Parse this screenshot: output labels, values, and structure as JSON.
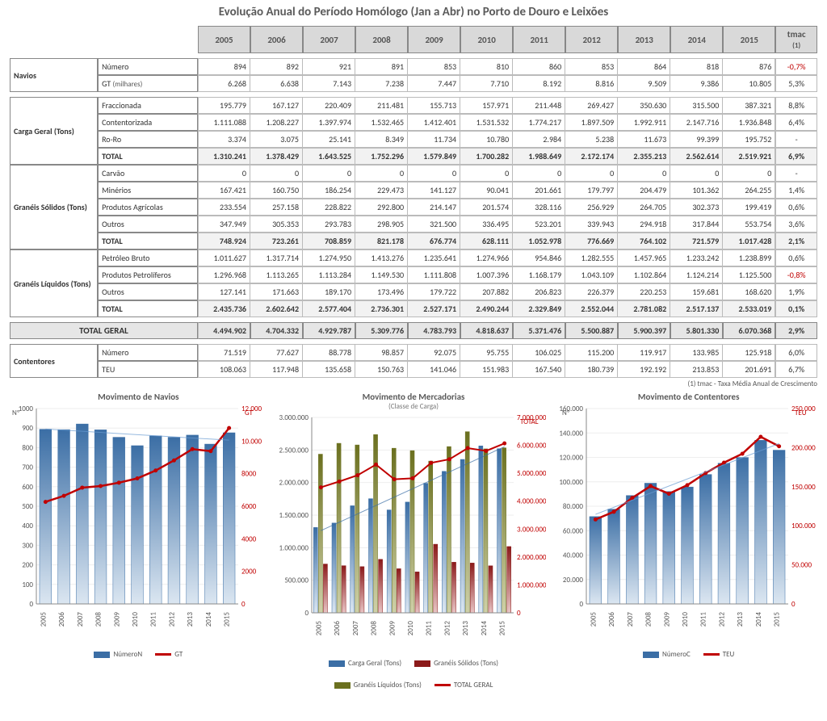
{
  "title": "Evolução Anual do Período Homólogo (Jan a Abr) no Porto de Douro e Leixões",
  "years": [
    "2005",
    "2006",
    "2007",
    "2008",
    "2009",
    "2010",
    "2011",
    "2012",
    "2013",
    "2014",
    "2015"
  ],
  "tmac_label": "tmac",
  "tmac_note_num": "(1)",
  "footnote": "(1) tmac - Taxa Média Anual de Crescimento",
  "colors": {
    "header_bg": "#d9d9d9",
    "total_bg": "#f2f2f2",
    "grand_bg": "#e6e6e6",
    "bar_top": "#3b6ea5",
    "bar_bot": "#dbe6f1",
    "bar_olive": "#6b701f",
    "bar_dkred": "#8b1a1a",
    "line_red": "#c00000",
    "axis_text": "#555555"
  },
  "groups": [
    {
      "label": "Navios",
      "rows": [
        {
          "label": "Número",
          "vals": [
            "894",
            "892",
            "921",
            "891",
            "853",
            "810",
            "860",
            "853",
            "864",
            "818",
            "876"
          ],
          "tmac": "-0,7%",
          "neg": true
        },
        {
          "label": "GT",
          "label_extra": "(milhares)",
          "vals": [
            "6.268",
            "6.638",
            "7.143",
            "7.238",
            "7.447",
            "7.710",
            "8.192",
            "8.816",
            "9.509",
            "9.386",
            "10.805"
          ],
          "tmac": "5,3%"
        }
      ]
    },
    {
      "label": "Carga Geral (Tons)",
      "rows": [
        {
          "label": "Fraccionada",
          "vals": [
            "195.779",
            "167.127",
            "220.409",
            "211.481",
            "155.713",
            "157.971",
            "211.448",
            "269.427",
            "350.630",
            "315.500",
            "387.321"
          ],
          "tmac": "8,8%"
        },
        {
          "label": "Contentorizada",
          "vals": [
            "1.111.088",
            "1.208.227",
            "1.397.974",
            "1.532.465",
            "1.412.401",
            "1.531.532",
            "1.774.217",
            "1.897.509",
            "1.992.911",
            "2.147.716",
            "1.936.848"
          ],
          "tmac": "6,4%"
        },
        {
          "label": "Ro-Ro",
          "vals": [
            "3.374",
            "3.075",
            "25.141",
            "8.349",
            "11.734",
            "10.780",
            "2.984",
            "5.238",
            "11.673",
            "99.399",
            "195.752"
          ],
          "tmac": "-"
        },
        {
          "label": "TOTAL",
          "total": true,
          "vals": [
            "1.310.241",
            "1.378.429",
            "1.643.525",
            "1.752.296",
            "1.579.849",
            "1.700.282",
            "1.988.649",
            "2.172.174",
            "2.355.213",
            "2.562.614",
            "2.519.921"
          ],
          "tmac": "6,9%"
        }
      ]
    },
    {
      "label": "Granéis Sólidos (Tons)",
      "rows": [
        {
          "label": "Carvão",
          "vals": [
            "0",
            "0",
            "0",
            "0",
            "0",
            "0",
            "0",
            "0",
            "0",
            "0",
            "0"
          ],
          "tmac": "-"
        },
        {
          "label": "Minérios",
          "vals": [
            "167.421",
            "160.750",
            "186.254",
            "229.473",
            "141.127",
            "90.041",
            "201.661",
            "179.797",
            "204.479",
            "101.362",
            "264.255"
          ],
          "tmac": "1,4%"
        },
        {
          "label": "Produtos Agrícolas",
          "vals": [
            "233.554",
            "257.158",
            "228.822",
            "292.800",
            "214.147",
            "201.574",
            "328.116",
            "256.929",
            "264.705",
            "302.373",
            "199.419"
          ],
          "tmac": "0,6%"
        },
        {
          "label": "Outros",
          "vals": [
            "347.949",
            "305.353",
            "293.783",
            "298.905",
            "321.500",
            "336.495",
            "523.201",
            "339.943",
            "294.918",
            "317.844",
            "553.754"
          ],
          "tmac": "3,6%"
        },
        {
          "label": "TOTAL",
          "total": true,
          "vals": [
            "748.924",
            "723.261",
            "708.859",
            "821.178",
            "676.774",
            "628.111",
            "1.052.978",
            "776.669",
            "764.102",
            "721.579",
            "1.017.428"
          ],
          "tmac": "2,1%"
        }
      ]
    },
    {
      "label": "Granéis Líquidos (Tons)",
      "rows": [
        {
          "label": "Petróleo Bruto",
          "vals": [
            "1.011.627",
            "1.317.714",
            "1.274.950",
            "1.413.276",
            "1.235.641",
            "1.274.966",
            "954.846",
            "1.282.555",
            "1.457.965",
            "1.233.242",
            "1.238.899"
          ],
          "tmac": "0,6%"
        },
        {
          "label": "Produtos Petrolíferos",
          "vals": [
            "1.296.968",
            "1.113.265",
            "1.113.284",
            "1.149.530",
            "1.111.808",
            "1.007.396",
            "1.168.179",
            "1.043.109",
            "1.102.864",
            "1.124.214",
            "1.125.500"
          ],
          "tmac": "-0,8%",
          "neg": true
        },
        {
          "label": "Outros",
          "vals": [
            "127.141",
            "171.663",
            "189.170",
            "173.496",
            "179.722",
            "207.882",
            "206.823",
            "226.379",
            "220.253",
            "159.681",
            "168.620"
          ],
          "tmac": "1,9%"
        },
        {
          "label": "TOTAL",
          "total": true,
          "vals": [
            "2.435.736",
            "2.602.642",
            "2.577.404",
            "2.736.301",
            "2.527.171",
            "2.490.244",
            "2.329.849",
            "2.552.044",
            "2.781.082",
            "2.517.137",
            "2.533.019"
          ],
          "tmac": "0,1%"
        }
      ]
    }
  ],
  "grand": {
    "label": "TOTAL GERAL",
    "vals": [
      "4.494.902",
      "4.704.332",
      "4.929.787",
      "5.309.776",
      "4.783.793",
      "4.818.637",
      "5.371.476",
      "5.500.887",
      "5.900.397",
      "5.801.330",
      "6.070.368"
    ],
    "tmac": "2,9%"
  },
  "containers": {
    "label": "Contentores",
    "rows": [
      {
        "label": "Número",
        "vals": [
          "71.519",
          "77.627",
          "88.778",
          "98.857",
          "92.075",
          "95.755",
          "106.025",
          "115.200",
          "119.917",
          "133.985",
          "125.918"
        ],
        "tmac": "6,0%"
      },
      {
        "label": "TEU",
        "vals": [
          "108.063",
          "117.948",
          "135.658",
          "150.763",
          "141.046",
          "151.983",
          "167.540",
          "180.739",
          "192.192",
          "213.853",
          "201.691"
        ],
        "tmac": "6,7%"
      }
    ]
  },
  "chart1": {
    "title": "Movimento de Navios",
    "ylabel_l": "Nº",
    "ylabel_r": "GT",
    "ylim_l": [
      0,
      1000
    ],
    "ystep_l": 100,
    "ylim_r": [
      0,
      12000
    ],
    "ystep_r": 2000,
    "bars": [
      894,
      892,
      921,
      891,
      853,
      810,
      860,
      853,
      864,
      818,
      876
    ],
    "line": [
      6268,
      6638,
      7143,
      7238,
      7447,
      7710,
      8192,
      8816,
      9509,
      9386,
      10805
    ],
    "bar_color_top": "#3b6ea5",
    "bar_color_bot": "#dbe6f1",
    "line_color": "#c00000",
    "legend": [
      {
        "label": "NúmeroN",
        "type": "bar",
        "color": "#3b6ea5"
      },
      {
        "label": "GT",
        "type": "line",
        "color": "#c00000"
      }
    ]
  },
  "chart2": {
    "title": "Movimento  de Mercadorias",
    "subtitle": "(Classe de Carga)",
    "ylabel_r": "TOTAL",
    "ylim_l": [
      0,
      3000000
    ],
    "ystep_l": 500000,
    "ylim_r": [
      0,
      7000000
    ],
    "ystep_r": 1000000,
    "series": [
      {
        "name": "Carga Geral (Tons)",
        "type": "bar",
        "color_top": "#3b6ea5",
        "color_bot": "#dbe6f1",
        "vals": [
          1310241,
          1378429,
          1643525,
          1752296,
          1579849,
          1700282,
          1988649,
          2172174,
          2355213,
          2562614,
          2519921
        ]
      },
      {
        "name": "Granéis Líquidos (Tons)",
        "type": "bar",
        "color_top": "#6b701f",
        "color_bot": "#cfd1a9",
        "vals": [
          2435736,
          2602642,
          2577404,
          2736301,
          2527171,
          2490244,
          2329849,
          2552044,
          2781082,
          2517137,
          2533019
        ]
      },
      {
        "name": "Granéis Sólidos (Tons)",
        "type": "bar",
        "color_top": "#8b1a1a",
        "color_bot": "#e8c5c5",
        "vals": [
          748924,
          723261,
          708859,
          821178,
          676774,
          628111,
          1052978,
          776669,
          764102,
          721579,
          1017428
        ]
      }
    ],
    "line_total": {
      "name": "TOTAL GERAL",
      "color": "#c00000",
      "vals": [
        4494902,
        4704332,
        4929787,
        5309776,
        4783793,
        4818637,
        5371476,
        5500887,
        5900397,
        5801330,
        6070368
      ]
    },
    "legend": [
      {
        "label": "Carga Geral (Tons)",
        "type": "bar",
        "color": "#3b6ea5"
      },
      {
        "label": "Granéis Sólidos (Tons)",
        "type": "bar",
        "color": "#8b1a1a"
      },
      {
        "label": "Granéis Líquidos (Tons)",
        "type": "bar",
        "color": "#6b701f"
      },
      {
        "label": "TOTAL GERAL",
        "type": "line",
        "color": "#c00000"
      }
    ]
  },
  "chart3": {
    "title": "Movimento de Contentores",
    "ylabel_l": "Nº",
    "ylabel_r": "TEU",
    "ylim_l": [
      0,
      160000
    ],
    "ystep_l": 20000,
    "ylim_r": [
      0,
      250000
    ],
    "ystep_r": 50000,
    "bars": [
      71519,
      77627,
      88778,
      98857,
      92075,
      95755,
      106025,
      115200,
      119917,
      133985,
      125918
    ],
    "line": [
      108063,
      117948,
      135658,
      150763,
      141046,
      151983,
      167540,
      180739,
      192192,
      213853,
      201691
    ],
    "bar_color_top": "#3b6ea5",
    "bar_color_bot": "#dbe6f1",
    "line_color": "#c00000",
    "legend": [
      {
        "label": "NúmeroC",
        "type": "bar",
        "color": "#3b6ea5"
      },
      {
        "label": "TEU",
        "type": "line",
        "color": "#c00000"
      }
    ]
  }
}
